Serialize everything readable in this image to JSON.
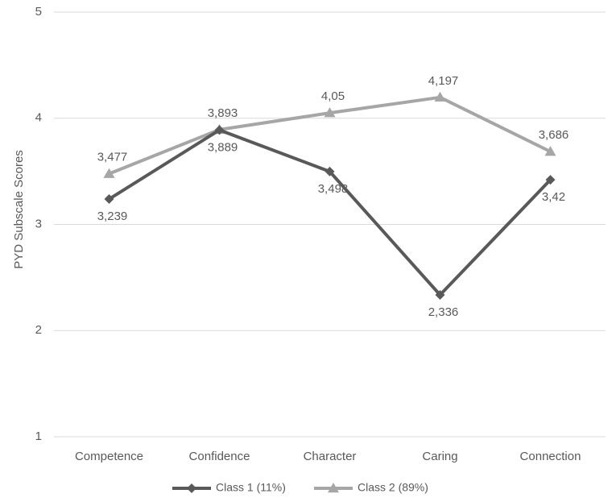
{
  "chart_data": {
    "type": "line",
    "categories": [
      "Competence",
      "Confidence",
      "Character",
      "Caring",
      "Connection"
    ],
    "series": [
      {
        "name": "Class 1 (11%)",
        "values": [
          3.239,
          3.889,
          3.498,
          2.336,
          3.42
        ],
        "labels": [
          "3,239",
          "3,889",
          "3,498",
          "2,336",
          "3,42"
        ],
        "color": "#595959",
        "marker": "diamond"
      },
      {
        "name": "Class 2 (89%)",
        "values": [
          3.477,
          3.893,
          4.05,
          4.197,
          3.686
        ],
        "labels": [
          "3,477",
          "3,893",
          "4,05",
          "4,197",
          "3,686"
        ],
        "color": "#a6a6a6",
        "marker": "triangle"
      }
    ],
    "ylabel": "PYD Subscale Scores",
    "ylim": [
      1,
      5
    ],
    "yticks": [
      "1",
      "2",
      "3",
      "4",
      "5"
    ],
    "grid": true,
    "legend": "bottom"
  }
}
